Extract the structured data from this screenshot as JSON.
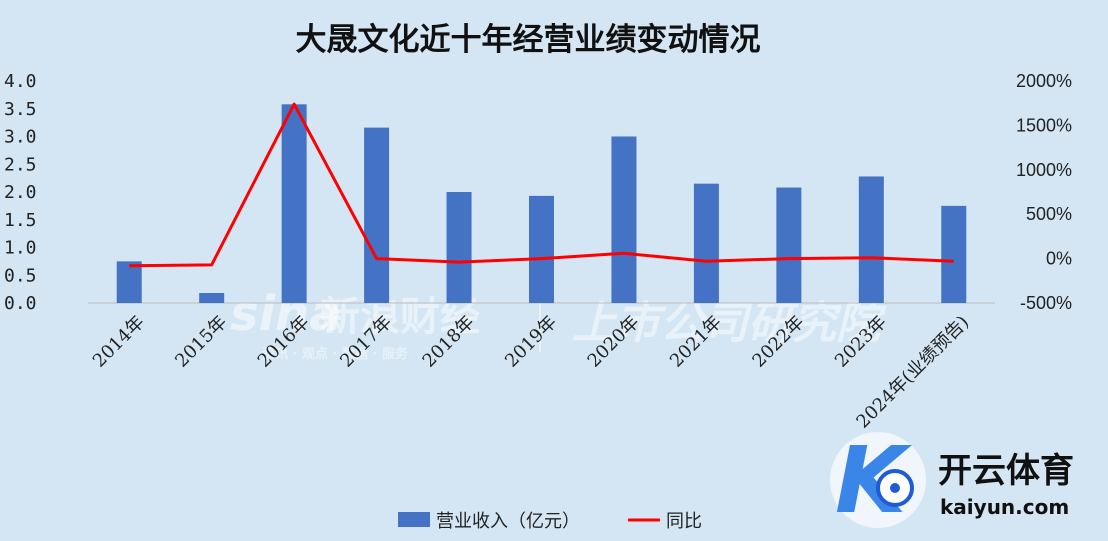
{
  "title": "大晟文化近十年经营业绩变动情况",
  "chart_data": {
    "type": "bar+line",
    "title": "大晟文化近十年经营业绩变动情况",
    "categories": [
      "2014年",
      "2015年",
      "2016年",
      "2017年",
      "2018年",
      "2019年",
      "2020年",
      "2021年",
      "2022年",
      "2023年",
      "2024年(业绩预告)"
    ],
    "series": [
      {
        "name": "营业收入（亿元）",
        "type": "bar",
        "axis": "left",
        "color": "#4472c4",
        "values": [
          0.75,
          0.18,
          3.58,
          3.16,
          2.0,
          1.93,
          3.0,
          2.15,
          2.08,
          2.28,
          1.75
        ]
      },
      {
        "name": "同比",
        "type": "line",
        "axis": "right",
        "color": "#ff0000",
        "values": [
          -80,
          -70,
          1740,
          0,
          -40,
          0,
          60,
          -30,
          0,
          10,
          -30
        ]
      }
    ],
    "y_left": {
      "ticks": [
        "4.0",
        "3.5",
        "3.0",
        "2.5",
        "2.0",
        "1.5",
        "1.0",
        "0.5",
        "0.0"
      ],
      "min": 0,
      "max": 4.0
    },
    "y_right": {
      "ticks": [
        "2000%",
        "1500%",
        "1000%",
        "500%",
        "0%",
        "-500%"
      ],
      "min": -500,
      "max": 2000
    },
    "legend": "bottom",
    "grid": false
  },
  "watermarks": {
    "sina_logo": "sina",
    "sina_text": "新浪财经",
    "sina_sub": "资讯 · 观点 · 数据 · 服务",
    "research": "上市公司研究院"
  },
  "brand": {
    "name": "开云体育",
    "url": "kaiyun.com"
  }
}
